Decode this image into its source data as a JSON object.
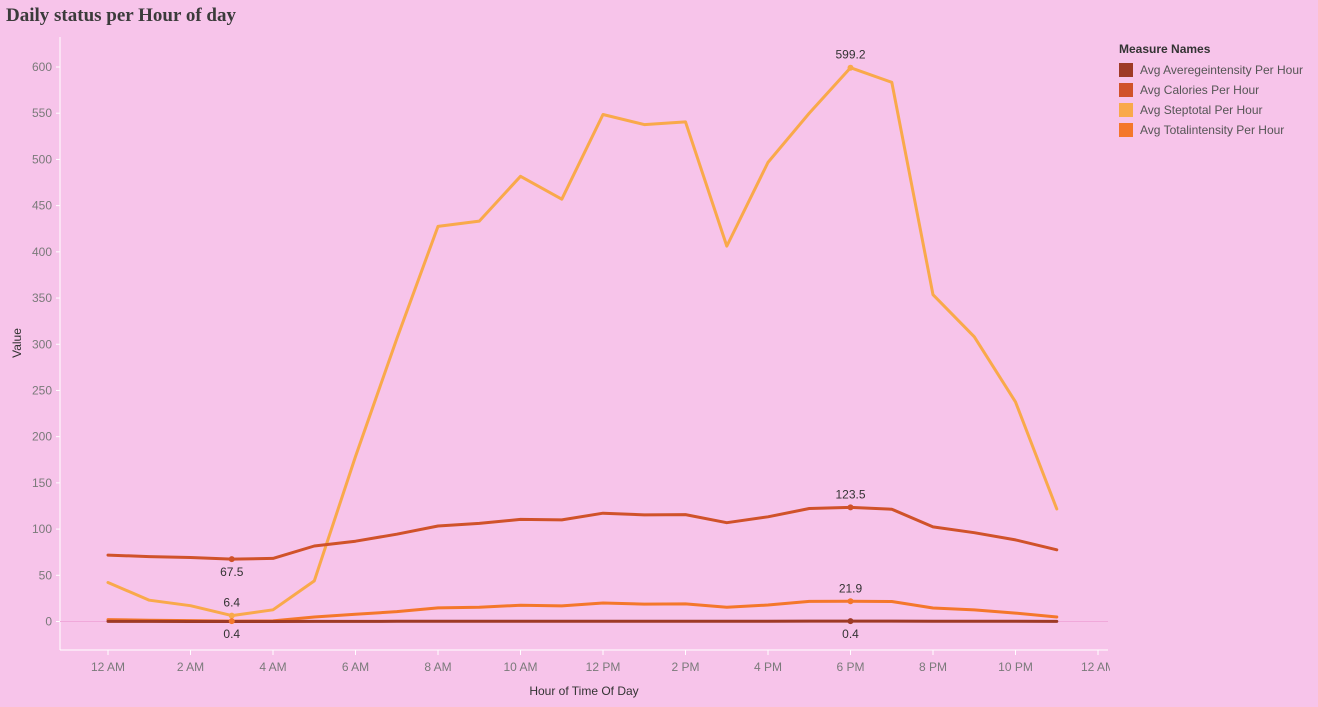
{
  "title": "Daily status per Hour of day",
  "legend": {
    "title": "Measure Names",
    "items": [
      {
        "label": "Avg Averegeintensity Per Hour",
        "color": "#9e3a26"
      },
      {
        "label": "Avg Calories Per Hour",
        "color": "#d0522a"
      },
      {
        "label": "Avg Steptotal Per Hour",
        "color": "#f9a94b"
      },
      {
        "label": "Avg Totalintensity Per Hour",
        "color": "#f4772b"
      }
    ]
  },
  "chart_data": {
    "type": "line",
    "xlabel": "Hour of Time Of Day",
    "ylabel": "Value",
    "x": [
      0,
      1,
      2,
      3,
      4,
      5,
      6,
      7,
      8,
      9,
      10,
      11,
      12,
      13,
      14,
      15,
      16,
      17,
      18,
      19,
      20,
      21,
      22,
      23
    ],
    "x_ticks": [
      "12 AM",
      "2 AM",
      "4 AM",
      "6 AM",
      "8 AM",
      "10 AM",
      "12 PM",
      "2 PM",
      "4 PM",
      "6 PM",
      "8 PM",
      "10 PM",
      "12 AM"
    ],
    "ylim": [
      -30,
      630
    ],
    "y_ticks": [
      0,
      50,
      100,
      150,
      200,
      250,
      300,
      350,
      400,
      450,
      500,
      550,
      600
    ],
    "grid": false,
    "legend_position": "top-right",
    "series": [
      {
        "name": "Avg Averegeintensity Per Hour",
        "color": "#9e3a26",
        "values": [
          0.1,
          0.1,
          0.0,
          0.0,
          0.0,
          0.1,
          0.1,
          0.2,
          0.2,
          0.3,
          0.3,
          0.3,
          0.3,
          0.3,
          0.3,
          0.3,
          0.3,
          0.4,
          0.4,
          0.4,
          0.2,
          0.2,
          0.2,
          0.1
        ]
      },
      {
        "name": "Avg Calories Per Hour",
        "color": "#d0522a",
        "values": [
          71.8,
          70.2,
          69.2,
          67.5,
          68.3,
          81.7,
          86.9,
          94.5,
          103.3,
          106.1,
          110.5,
          109.9,
          117.2,
          115.3,
          115.7,
          106.9,
          113.3,
          122.3,
          123.5,
          121.5,
          102.4,
          96.1,
          88.3,
          77.6
        ]
      },
      {
        "name": "Avg Steptotal Per Hour",
        "color": "#f9a94b",
        "values": [
          42.2,
          23.1,
          17.1,
          6.4,
          12.7,
          43.9,
          178.5,
          306.0,
          427.5,
          433.3,
          481.7,
          456.9,
          548.6,
          537.7,
          540.6,
          406.2,
          496.8,
          550.1,
          599.2,
          583.4,
          353.6,
          308.1,
          237.6,
          121.7
        ]
      },
      {
        "name": "Avg Totalintensity Per Hour",
        "color": "#f4772b",
        "values": [
          2.1,
          1.4,
          1.0,
          0.4,
          0.6,
          4.9,
          7.8,
          10.7,
          14.7,
          15.4,
          17.6,
          16.9,
          20.0,
          18.8,
          19.0,
          15.5,
          17.9,
          21.7,
          21.9,
          21.6,
          14.6,
          12.5,
          9.1,
          4.9
        ]
      }
    ],
    "data_labels": [
      {
        "series": 2,
        "index": 18,
        "text": "599.2",
        "pos": "above"
      },
      {
        "series": 1,
        "index": 18,
        "text": "123.5",
        "pos": "above"
      },
      {
        "series": 3,
        "index": 18,
        "text": "21.9",
        "pos": "above"
      },
      {
        "series": 0,
        "index": 18,
        "text": "0.4",
        "pos": "below"
      },
      {
        "series": 1,
        "index": 3,
        "text": "67.5",
        "pos": "below"
      },
      {
        "series": 2,
        "index": 3,
        "text": "6.4",
        "pos": "above"
      },
      {
        "series": 3,
        "index": 3,
        "text": "0.4",
        "pos": "below"
      }
    ]
  }
}
